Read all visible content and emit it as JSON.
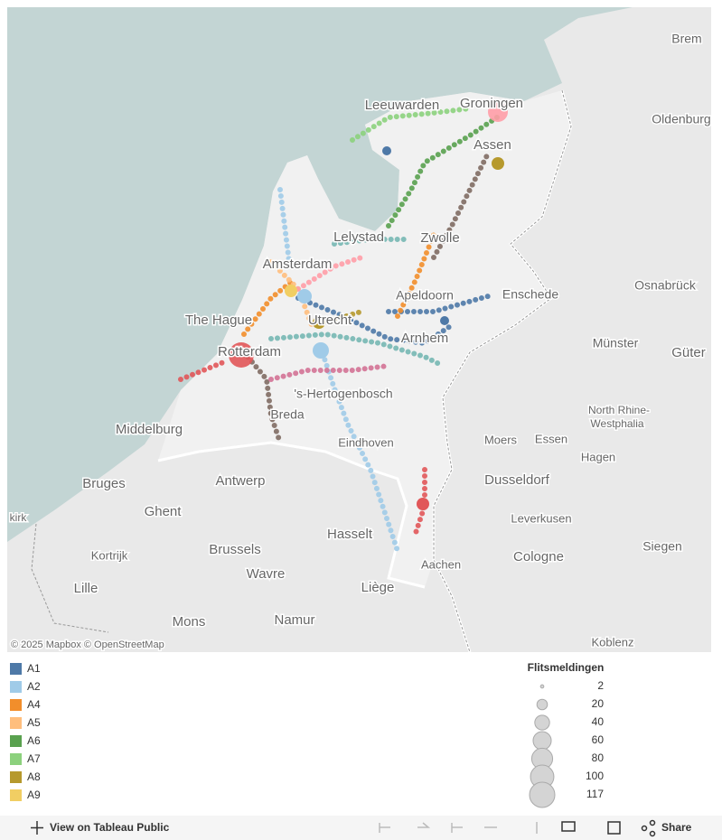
{
  "map": {
    "labels": [
      "Brem",
      "Leeuwarden",
      "Groningen",
      "Oldenburg",
      "Assen",
      "Lelystad",
      "Zwolle",
      "Amsterdam",
      "Apeldoorn",
      "Enschede",
      "Osnabrück",
      "The Hague",
      "Utrecht",
      "Arnhem",
      "Münster",
      "Güter",
      "Rotterdam",
      "'s-Hertogenbosch",
      "North Rhine-",
      "Westphalia",
      "Breda",
      "Middelburg",
      "Moers",
      "Essen",
      "Eindhoven",
      "Hagen",
      "Bruges",
      "Antwerp",
      "Dusseldorf",
      "kirk",
      "Ghent",
      "Leverkusen",
      "Hasselt",
      "Brussels",
      "Siegen",
      "Kortrijk",
      "Cologne",
      "Aachen",
      "Wavre",
      "Lille",
      "Liège",
      "Mons",
      "Namur",
      "Koblenz"
    ],
    "attribution": "© 2025 Mapbox © OpenStreetMap"
  },
  "color_legend": {
    "items": [
      {
        "name": "A1",
        "color": "#4e79a7"
      },
      {
        "name": "A2",
        "color": "#a0cbe8"
      },
      {
        "name": "A4",
        "color": "#f28e2b"
      },
      {
        "name": "A5",
        "color": "#ffbe7d"
      },
      {
        "name": "A6",
        "color": "#59a14f"
      },
      {
        "name": "A7",
        "color": "#8cd17d"
      },
      {
        "name": "A8",
        "color": "#b6992d"
      },
      {
        "name": "A9",
        "color": "#f1ce63"
      }
    ]
  },
  "size_legend": {
    "title": "Flitsmeldingen",
    "values": [
      2,
      20,
      40,
      60,
      80,
      100,
      117
    ]
  },
  "toolbar": {
    "view": "View on Tableau Public",
    "share": "Share"
  }
}
